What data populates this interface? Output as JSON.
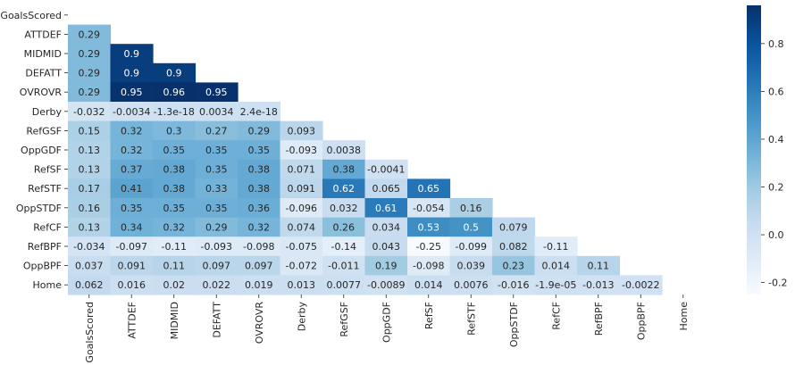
{
  "chart_data": {
    "type": "heatmap",
    "title": "",
    "xlabel": "",
    "ylabel": "",
    "labels": [
      "GoalsScored",
      "ATTDEF",
      "MIDMID",
      "DEFATT",
      "OVROVR",
      "Derby",
      "RefGSF",
      "OppGDF",
      "RefSF",
      "RefSTF",
      "OppSTDF",
      "RefCF",
      "RefBPF",
      "OppBPF",
      "Home"
    ],
    "mask": "upper-triangle-including-diagonal",
    "cells": [
      [],
      [
        "0.29"
      ],
      [
        "0.29",
        "0.9"
      ],
      [
        "0.29",
        "0.9",
        "0.9"
      ],
      [
        "0.29",
        "0.95",
        "0.96",
        "0.95"
      ],
      [
        "-0.032",
        "-0.0034",
        "-1.3e-18",
        "0.0034",
        "2.4e-18"
      ],
      [
        "0.15",
        "0.32",
        "0.3",
        "0.27",
        "0.29",
        "0.093"
      ],
      [
        "0.13",
        "0.32",
        "0.35",
        "0.35",
        "0.35",
        "-0.093",
        "0.0038"
      ],
      [
        "0.13",
        "0.37",
        "0.38",
        "0.35",
        "0.38",
        "0.071",
        "0.38",
        "-0.0041"
      ],
      [
        "0.17",
        "0.41",
        "0.38",
        "0.33",
        "0.38",
        "0.091",
        "0.62",
        "0.065",
        "0.65"
      ],
      [
        "0.16",
        "0.35",
        "0.35",
        "0.35",
        "0.36",
        "-0.096",
        "0.032",
        "0.61",
        "-0.054",
        "0.16"
      ],
      [
        "0.13",
        "0.34",
        "0.32",
        "0.29",
        "0.32",
        "0.074",
        "0.26",
        "0.034",
        "0.53",
        "0.5",
        "0.079"
      ],
      [
        "-0.034",
        "-0.097",
        "-0.11",
        "-0.093",
        "-0.098",
        "-0.075",
        "-0.14",
        "0.043",
        "-0.25",
        "-0.099",
        "0.082",
        "-0.11"
      ],
      [
        "0.037",
        "0.091",
        "0.11",
        "0.097",
        "0.097",
        "-0.072",
        "-0.011",
        "0.19",
        "-0.098",
        "0.039",
        "0.23",
        "0.014",
        "0.11"
      ],
      [
        "0.062",
        "0.016",
        "0.02",
        "0.022",
        "0.019",
        "0.013",
        "0.0077",
        "-0.0089",
        "0.014",
        "0.0076",
        "-0.016",
        "-1.9e-05",
        "-0.013",
        "-0.0022"
      ]
    ],
    "colorscale": {
      "name": "Blues",
      "vmin": -0.25,
      "vmax": 0.96,
      "ticks": [
        "-0.2",
        "0.0",
        "0.2",
        "0.4",
        "0.6",
        "0.8"
      ]
    },
    "grid": false
  }
}
